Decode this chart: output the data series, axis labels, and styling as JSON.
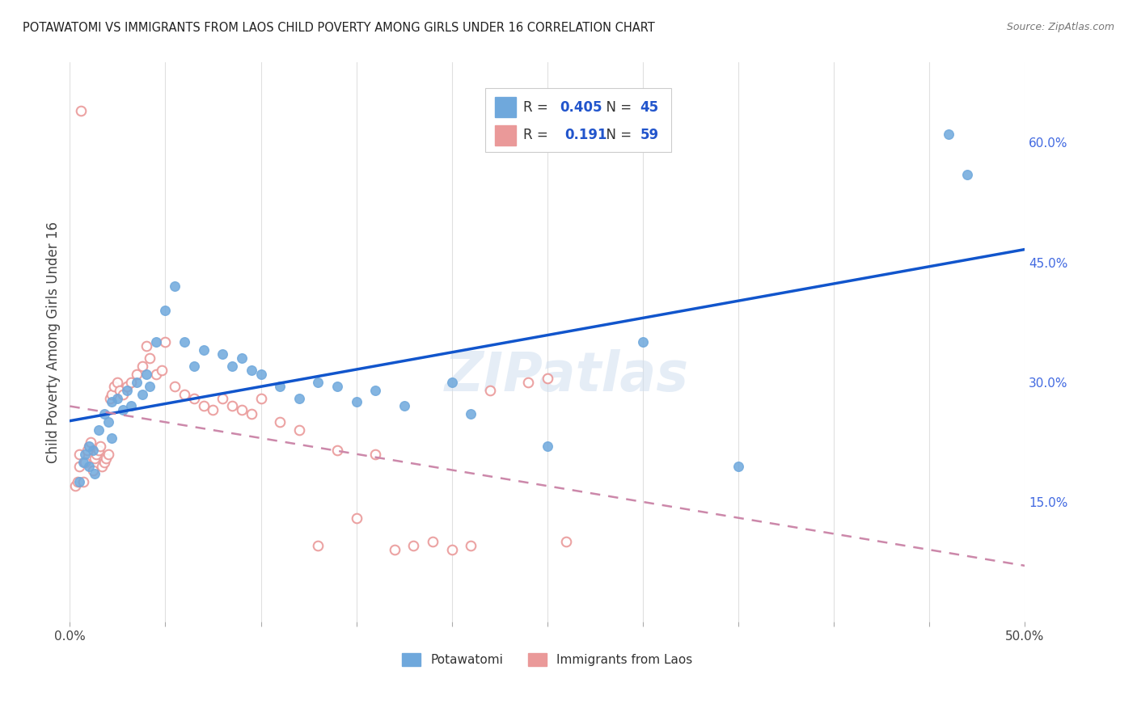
{
  "title": "POTAWATOMI VS IMMIGRANTS FROM LAOS CHILD POVERTY AMONG GIRLS UNDER 16 CORRELATION CHART",
  "source": "Source: ZipAtlas.com",
  "ylabel": "Child Poverty Among Girls Under 16",
  "xlim": [
    0,
    0.5
  ],
  "ylim": [
    0,
    0.7
  ],
  "x_ticks": [
    0.0,
    0.05,
    0.1,
    0.15,
    0.2,
    0.25,
    0.3,
    0.35,
    0.4,
    0.45,
    0.5
  ],
  "x_tick_labels": [
    "0.0%",
    "",
    "",
    "",
    "",
    "",
    "",
    "",
    "",
    "",
    "50.0%"
  ],
  "y_ticks_right": [
    0.15,
    0.3,
    0.45,
    0.6
  ],
  "y_tick_labels_right": [
    "15.0%",
    "30.0%",
    "45.0%",
    "60.0%"
  ],
  "blue_color": "#6fa8dc",
  "pink_color": "#ea9999",
  "blue_line_color": "#1155cc",
  "pink_line_color": "#cc88aa",
  "grid_color": "#e0e0e0",
  "watermark": "ZIPatlas",
  "potawatomi_x": [
    0.005,
    0.007,
    0.008,
    0.01,
    0.01,
    0.012,
    0.013,
    0.015,
    0.018,
    0.02,
    0.022,
    0.022,
    0.025,
    0.028,
    0.03,
    0.032,
    0.035,
    0.038,
    0.04,
    0.042,
    0.045,
    0.05,
    0.055,
    0.06,
    0.065,
    0.07,
    0.08,
    0.085,
    0.09,
    0.095,
    0.1,
    0.11,
    0.12,
    0.13,
    0.14,
    0.15,
    0.16,
    0.175,
    0.2,
    0.21,
    0.25,
    0.3,
    0.35,
    0.46,
    0.47
  ],
  "potawatomi_y": [
    0.175,
    0.2,
    0.21,
    0.195,
    0.22,
    0.215,
    0.185,
    0.24,
    0.26,
    0.25,
    0.275,
    0.23,
    0.28,
    0.265,
    0.29,
    0.27,
    0.3,
    0.285,
    0.31,
    0.295,
    0.35,
    0.39,
    0.42,
    0.35,
    0.32,
    0.34,
    0.335,
    0.32,
    0.33,
    0.315,
    0.31,
    0.295,
    0.28,
    0.3,
    0.295,
    0.275,
    0.29,
    0.27,
    0.3,
    0.26,
    0.22,
    0.35,
    0.195,
    0.61,
    0.56
  ],
  "laos_x": [
    0.003,
    0.004,
    0.005,
    0.005,
    0.006,
    0.007,
    0.008,
    0.009,
    0.01,
    0.011,
    0.012,
    0.013,
    0.014,
    0.015,
    0.016,
    0.017,
    0.018,
    0.019,
    0.02,
    0.021,
    0.022,
    0.023,
    0.025,
    0.026,
    0.028,
    0.03,
    0.032,
    0.035,
    0.038,
    0.04,
    0.042,
    0.045,
    0.048,
    0.05,
    0.055,
    0.06,
    0.065,
    0.07,
    0.075,
    0.08,
    0.085,
    0.09,
    0.095,
    0.1,
    0.11,
    0.12,
    0.13,
    0.14,
    0.15,
    0.16,
    0.17,
    0.18,
    0.19,
    0.2,
    0.21,
    0.22,
    0.24,
    0.25,
    0.26
  ],
  "laos_y": [
    0.17,
    0.175,
    0.21,
    0.195,
    0.64,
    0.175,
    0.2,
    0.215,
    0.22,
    0.225,
    0.19,
    0.205,
    0.21,
    0.215,
    0.22,
    0.195,
    0.2,
    0.205,
    0.21,
    0.28,
    0.285,
    0.295,
    0.3,
    0.29,
    0.285,
    0.295,
    0.3,
    0.31,
    0.32,
    0.345,
    0.33,
    0.31,
    0.315,
    0.35,
    0.295,
    0.285,
    0.28,
    0.27,
    0.265,
    0.28,
    0.27,
    0.265,
    0.26,
    0.28,
    0.25,
    0.24,
    0.095,
    0.215,
    0.13,
    0.21,
    0.09,
    0.095,
    0.1,
    0.09,
    0.095,
    0.29,
    0.3,
    0.305,
    0.1
  ]
}
